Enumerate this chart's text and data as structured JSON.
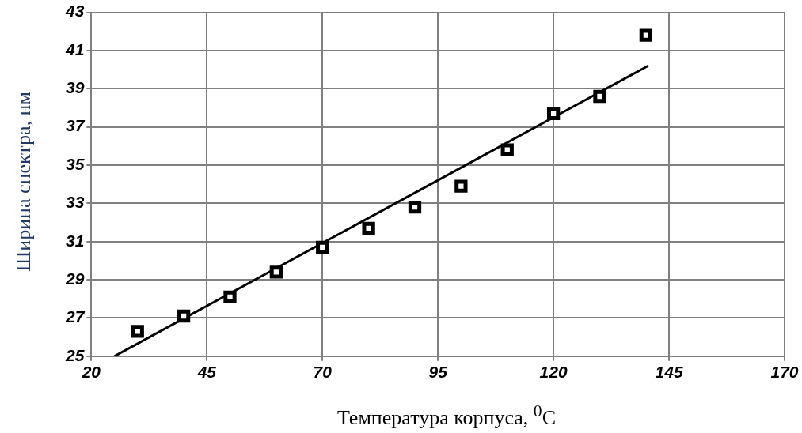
{
  "chart_data": {
    "type": "scatter",
    "xlabel": "Температура корпуса, $^{0}$C",
    "ylabel": "Ширина спектра, нм",
    "xlim": [
      20,
      170
    ],
    "xticks": [
      20,
      45,
      70,
      95,
      120,
      145,
      170
    ],
    "ylim": [
      25,
      43
    ],
    "yticks": [
      25,
      27,
      29,
      31,
      33,
      35,
      37,
      39,
      41,
      43
    ],
    "grid": true,
    "series": [
      {
        "type": "scatter",
        "color": "#000000",
        "marker": "square",
        "x": [
          30,
          40,
          50,
          60,
          70,
          80,
          90,
          100,
          110,
          120,
          130,
          140
        ],
        "values": [
          26.3,
          27.1,
          28.1,
          29.4,
          30.7,
          31.7,
          32.8,
          33.9,
          35.8,
          37.7,
          38.6,
          41.8
        ]
      },
      {
        "type": "line",
        "color": "#000000",
        "marker": "none",
        "line_style": "solid",
        "x": [
          25,
          140.5
        ],
        "values": [
          25,
          40.2
        ]
      }
    ]
  }
}
